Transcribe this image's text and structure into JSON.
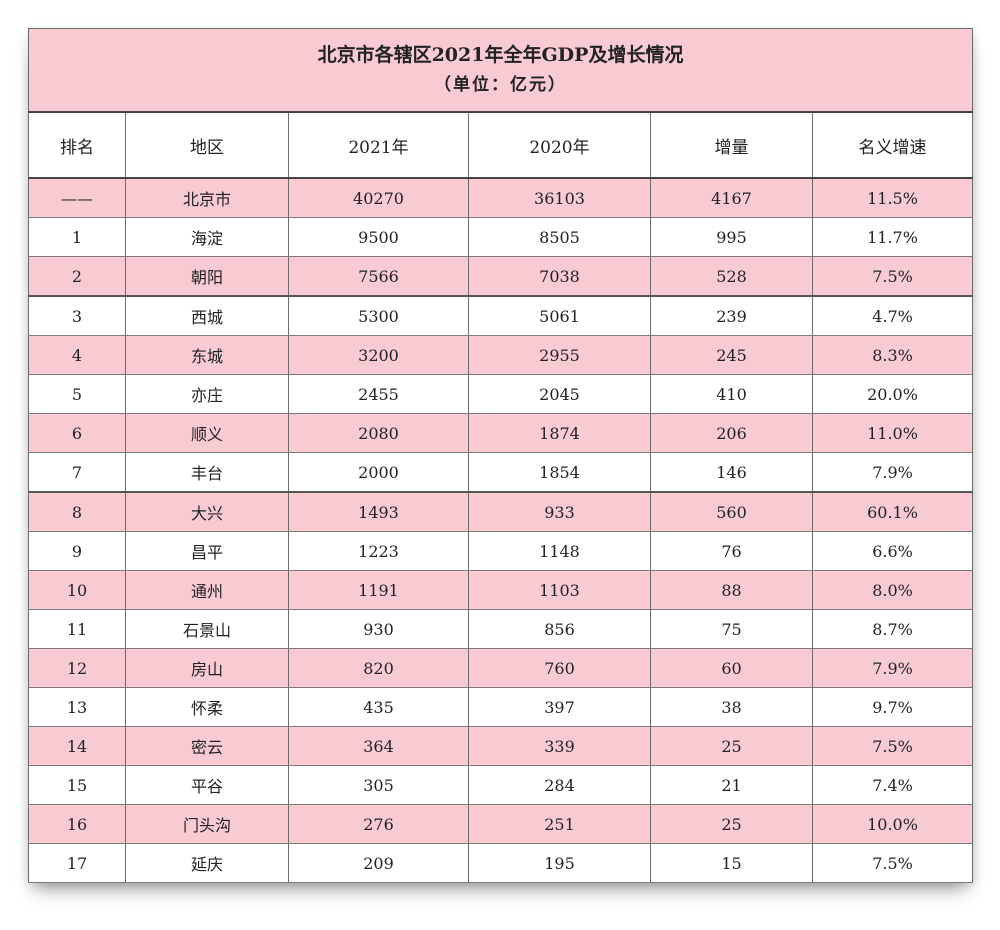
{
  "table": {
    "title": "北京市各辖区2021年全年GDP及增长情况",
    "subtitle": "（单位：亿元）",
    "headers": [
      "排名",
      "地区",
      "2021年",
      "2020年",
      "增量",
      "名义增速"
    ],
    "rows": [
      [
        "——",
        "北京市",
        "40270",
        "36103",
        "4167",
        "11.5%"
      ],
      [
        "1",
        "海淀",
        "9500",
        "8505",
        "995",
        "11.7%"
      ],
      [
        "2",
        "朝阳",
        "7566",
        "7038",
        "528",
        "7.5%"
      ],
      [
        "3",
        "西城",
        "5300",
        "5061",
        "239",
        "4.7%"
      ],
      [
        "4",
        "东城",
        "3200",
        "2955",
        "245",
        "8.3%"
      ],
      [
        "5",
        "亦庄",
        "2455",
        "2045",
        "410",
        "20.0%"
      ],
      [
        "6",
        "顺义",
        "2080",
        "1874",
        "206",
        "11.0%"
      ],
      [
        "7",
        "丰台",
        "2000",
        "1854",
        "146",
        "7.9%"
      ],
      [
        "8",
        "大兴",
        "1493",
        "933",
        "560",
        "60.1%"
      ],
      [
        "9",
        "昌平",
        "1223",
        "1148",
        "76",
        "6.6%"
      ],
      [
        "10",
        "通州",
        "1191",
        "1103",
        "88",
        "8.0%"
      ],
      [
        "11",
        "石景山",
        "930",
        "856",
        "75",
        "8.7%"
      ],
      [
        "12",
        "房山",
        "820",
        "760",
        "60",
        "7.9%"
      ],
      [
        "13",
        "怀柔",
        "435",
        "397",
        "38",
        "9.7%"
      ],
      [
        "14",
        "密云",
        "364",
        "339",
        "25",
        "7.5%"
      ],
      [
        "15",
        "平谷",
        "305",
        "284",
        "21",
        "7.4%"
      ],
      [
        "16",
        "门头沟",
        "276",
        "251",
        "25",
        "10.0%"
      ],
      [
        "17",
        "延庆",
        "209",
        "195",
        "15",
        "7.5%"
      ]
    ]
  }
}
